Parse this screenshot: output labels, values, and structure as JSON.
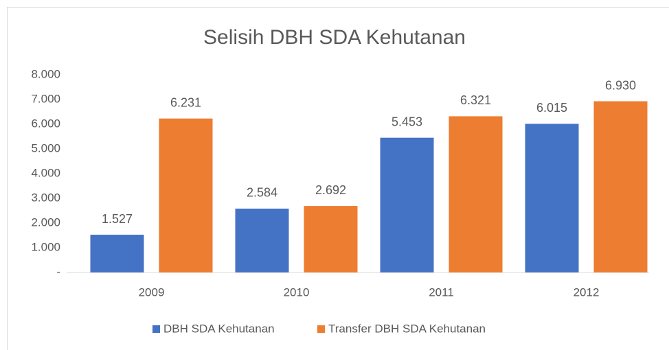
{
  "chart_data": {
    "type": "bar",
    "title": "Selisih DBH SDA Kehutanan",
    "categories": [
      "2009",
      "2010",
      "2011",
      "2012"
    ],
    "series": [
      {
        "name": "DBH SDA Kehutanan",
        "color": "#4472c4",
        "values": [
          1527,
          2584,
          5453,
          6015
        ],
        "value_labels": [
          "1.527",
          "2.584",
          "5.453",
          "6.015"
        ]
      },
      {
        "name": "Transfer DBH SDA Kehutanan",
        "color": "#ed7d31",
        "values": [
          6231,
          2692,
          6321,
          6930
        ],
        "value_labels": [
          "6.231",
          "2.692",
          "6.321",
          "6.930"
        ]
      }
    ],
    "ylim": [
      0,
      8000
    ],
    "yticks": [
      {
        "value": 0,
        "label": "-"
      },
      {
        "value": 1000,
        "label": "1.000"
      },
      {
        "value": 2000,
        "label": "2.000"
      },
      {
        "value": 3000,
        "label": "3.000"
      },
      {
        "value": 4000,
        "label": "4.000"
      },
      {
        "value": 5000,
        "label": "5.000"
      },
      {
        "value": 6000,
        "label": "6.000"
      },
      {
        "value": 7000,
        "label": "7.000"
      },
      {
        "value": 8000,
        "label": "8.000"
      }
    ],
    "grid": false,
    "legend": "bottom"
  }
}
